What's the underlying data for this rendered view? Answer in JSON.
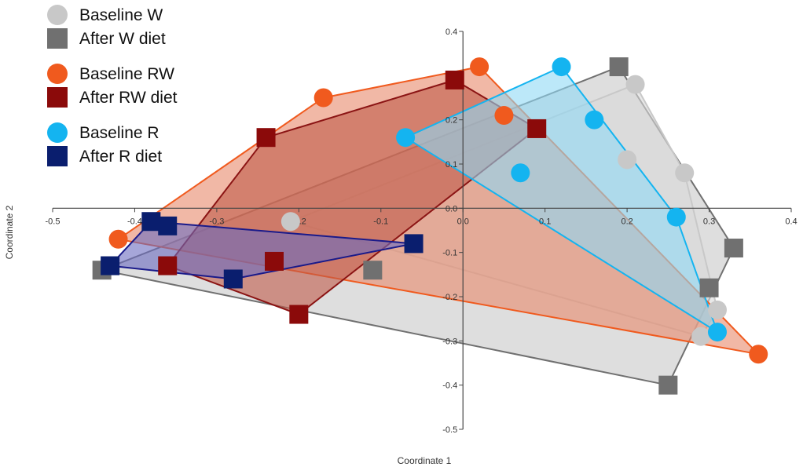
{
  "chart_data": {
    "type": "scatter",
    "title": "",
    "xlabel": "Coordinate 1",
    "ylabel": "Coordinate 2",
    "xlim": [
      -0.5,
      0.4
    ],
    "ylim": [
      -0.5,
      0.4
    ],
    "xticks": [
      -0.5,
      -0.4,
      -0.3,
      -0.2,
      -0.1,
      0.0,
      0.1,
      0.2,
      0.3,
      0.4
    ],
    "yticks": [
      -0.5,
      -0.4,
      -0.3,
      -0.2,
      -0.1,
      0.0,
      0.1,
      0.2,
      0.3,
      0.4
    ],
    "xtick_labels": [
      "-0.5",
      "-0.4",
      "-0.3",
      "-0.2",
      "-0.1",
      "0.0",
      "0.1",
      "0.2",
      "0.3",
      "0.4"
    ],
    "ytick_labels": [
      "-0.5",
      "-0.4",
      "-0.3",
      "-0.2",
      "-0.1",
      "0.0",
      "0.1",
      "0.2",
      "0.3",
      "0.4"
    ],
    "grid": false,
    "legend_position": "top-left",
    "series": [
      {
        "name": "Baseline W",
        "marker": "circle",
        "color": "#c8c8c8",
        "fill": "#d9d9d9",
        "hull_color": "#c8c8c8",
        "x": [
          0.21,
          0.2,
          0.27,
          0.31,
          0.29,
          -0.21
        ],
        "y": [
          0.28,
          0.11,
          0.08,
          -0.23,
          -0.29,
          -0.03
        ]
      },
      {
        "name": "After W diet",
        "marker": "square",
        "color": "#707070",
        "fill": "#c8c8c8",
        "hull_color": "#707070",
        "x": [
          0.19,
          0.33,
          0.3,
          0.25,
          -0.44,
          -0.11
        ],
        "y": [
          0.32,
          -0.09,
          -0.18,
          -0.4,
          -0.14,
          -0.14
        ]
      },
      {
        "name": "Baseline RW",
        "marker": "circle",
        "color": "#f05a1e",
        "fill": "#e8896a",
        "hull_color": "#f05a1e",
        "x": [
          0.02,
          -0.17,
          0.05,
          0.36,
          -0.42
        ],
        "y": [
          0.32,
          0.25,
          0.21,
          -0.33,
          -0.07
        ]
      },
      {
        "name": "After RW diet",
        "marker": "square",
        "color": "#8b0a0a",
        "fill": "#c05a4a",
        "hull_color": "#8b1414",
        "x": [
          -0.24,
          -0.01,
          0.09,
          -0.23,
          -0.36,
          -0.2
        ],
        "y": [
          0.16,
          0.29,
          0.18,
          -0.12,
          -0.13,
          -0.24
        ]
      },
      {
        "name": "Baseline R",
        "marker": "circle",
        "color": "#14b4f0",
        "fill": "#8fd8f5",
        "hull_color": "#14b4f0",
        "x": [
          -0.07,
          0.12,
          0.16,
          0.07,
          0.26,
          0.31
        ],
        "y": [
          0.16,
          0.32,
          0.2,
          0.08,
          -0.02,
          -0.28
        ]
      },
      {
        "name": "After R diet",
        "marker": "square",
        "color": "#0a1e6e",
        "fill": "#6a6ac0",
        "hull_color": "#1a1a8a",
        "x": [
          -0.38,
          -0.36,
          -0.06,
          -0.28,
          -0.43
        ],
        "y": [
          -0.03,
          -0.04,
          -0.08,
          -0.16,
          -0.13
        ]
      }
    ]
  }
}
